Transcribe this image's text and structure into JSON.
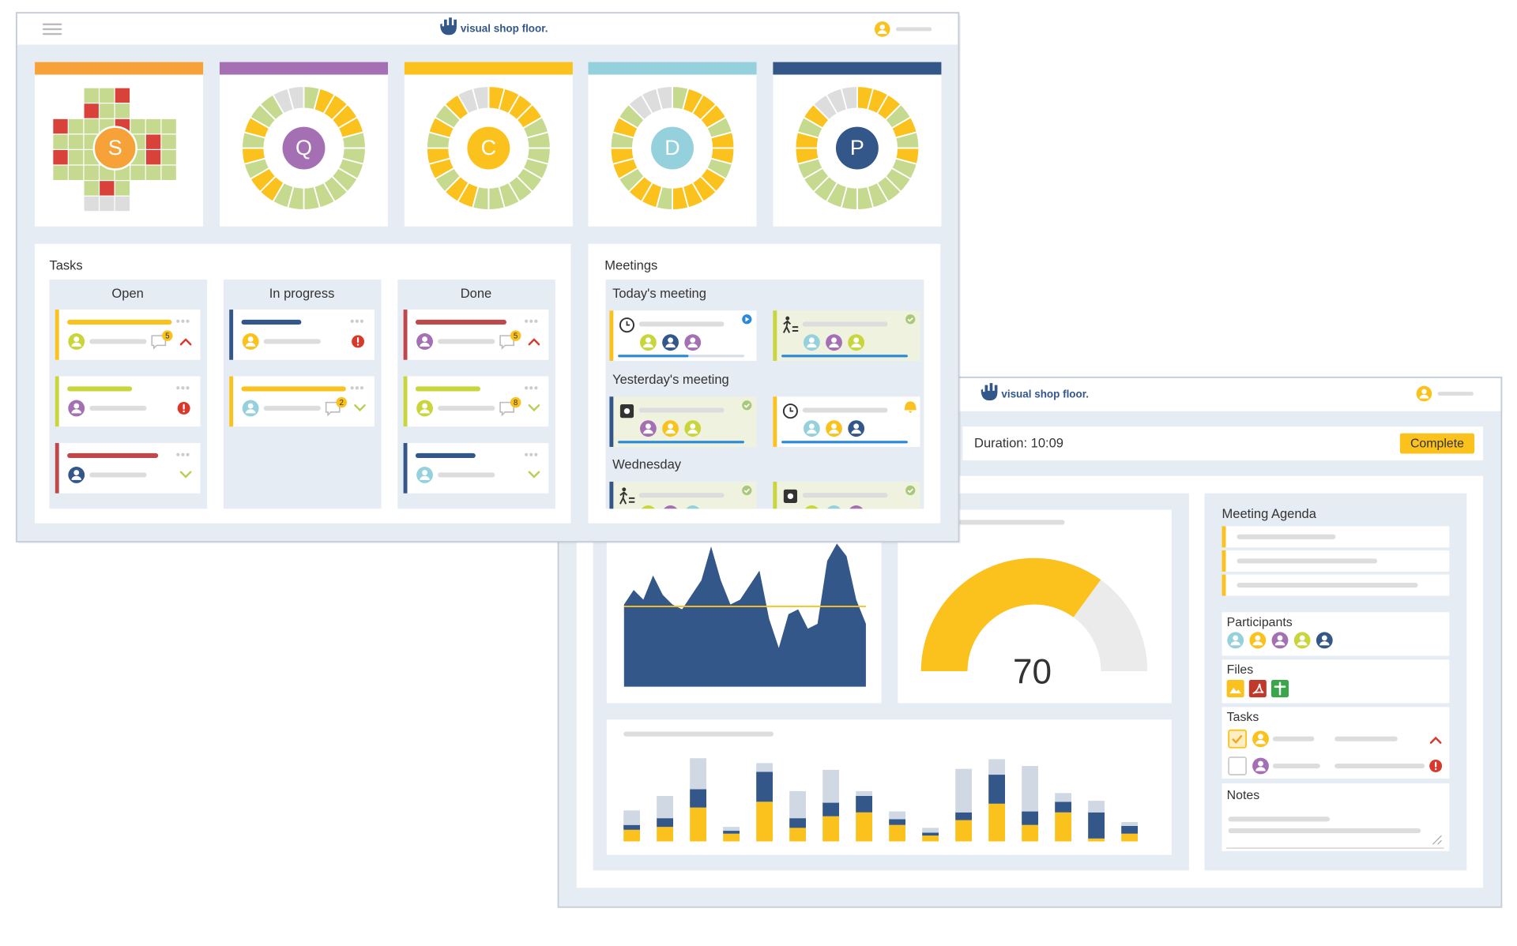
{
  "dashboard": {
    "logo": "visual shop floor.",
    "pillars": [
      "S",
      "Q",
      "C",
      "D",
      "P"
    ],
    "tasks": {
      "title": "Tasks",
      "columns": [
        {
          "name": "Open",
          "badges": [
            5
          ]
        },
        {
          "name": "In progress",
          "badges": [
            2
          ]
        },
        {
          "name": "Done",
          "badges": [
            5,
            8
          ]
        }
      ]
    },
    "meetings": {
      "title": "Meetings",
      "groups": [
        "Today's meeting",
        "Yesterday's meeting",
        "Wednesday"
      ]
    }
  },
  "meeting_view": {
    "logo": "visual shop floor.",
    "duration": "Duration: 10:09",
    "complete": "Complete",
    "agenda": "Meeting Agenda",
    "participants": "Participants",
    "files": "Files",
    "tasks": "Tasks",
    "notes": "Notes"
  },
  "chart_data": [
    {
      "type": "area",
      "categories": [
        null,
        null,
        null,
        null,
        null,
        null,
        null,
        null,
        null,
        null,
        null,
        null,
        null,
        null,
        null,
        null,
        null,
        null,
        null,
        null,
        null,
        null,
        null,
        null,
        null,
        null
      ],
      "values": [
        85,
        100,
        90,
        115,
        95,
        85,
        80,
        95,
        110,
        145,
        110,
        85,
        90,
        105,
        120,
        70,
        40,
        75,
        80,
        60,
        65,
        130,
        148,
        135,
        90,
        65
      ],
      "ylim": [
        0,
        150
      ],
      "color": "#34578a",
      "threshold": 83,
      "threshold_color": "#fbc21d"
    },
    {
      "type": "gauge",
      "value": 70,
      "range": [
        0,
        100
      ],
      "color": "#fbc21d",
      "track_color": "#ebebeb"
    },
    {
      "type": "bar",
      "stacked": true,
      "categories": [
        null,
        null,
        null,
        null,
        null,
        null,
        null,
        null,
        null,
        null,
        null,
        null,
        null,
        null,
        null,
        null
      ],
      "series": [
        {
          "color": "#fbc21d",
          "values": [
            12,
            15,
            35,
            8,
            41,
            14,
            26,
            30,
            17,
            6,
            22,
            39,
            17,
            30,
            3,
            8
          ]
        },
        {
          "color": "#34578a",
          "values": [
            5,
            9,
            19,
            3,
            31,
            10,
            14,
            17,
            6,
            3,
            8,
            30,
            14,
            11,
            27,
            8
          ]
        },
        {
          "color": "#cfd8e3",
          "values": [
            15,
            23,
            32,
            4,
            9,
            28,
            34,
            5,
            8,
            5,
            45,
            16,
            47,
            9,
            12,
            4
          ]
        }
      ],
      "ylim": [
        0,
        100
      ]
    }
  ]
}
